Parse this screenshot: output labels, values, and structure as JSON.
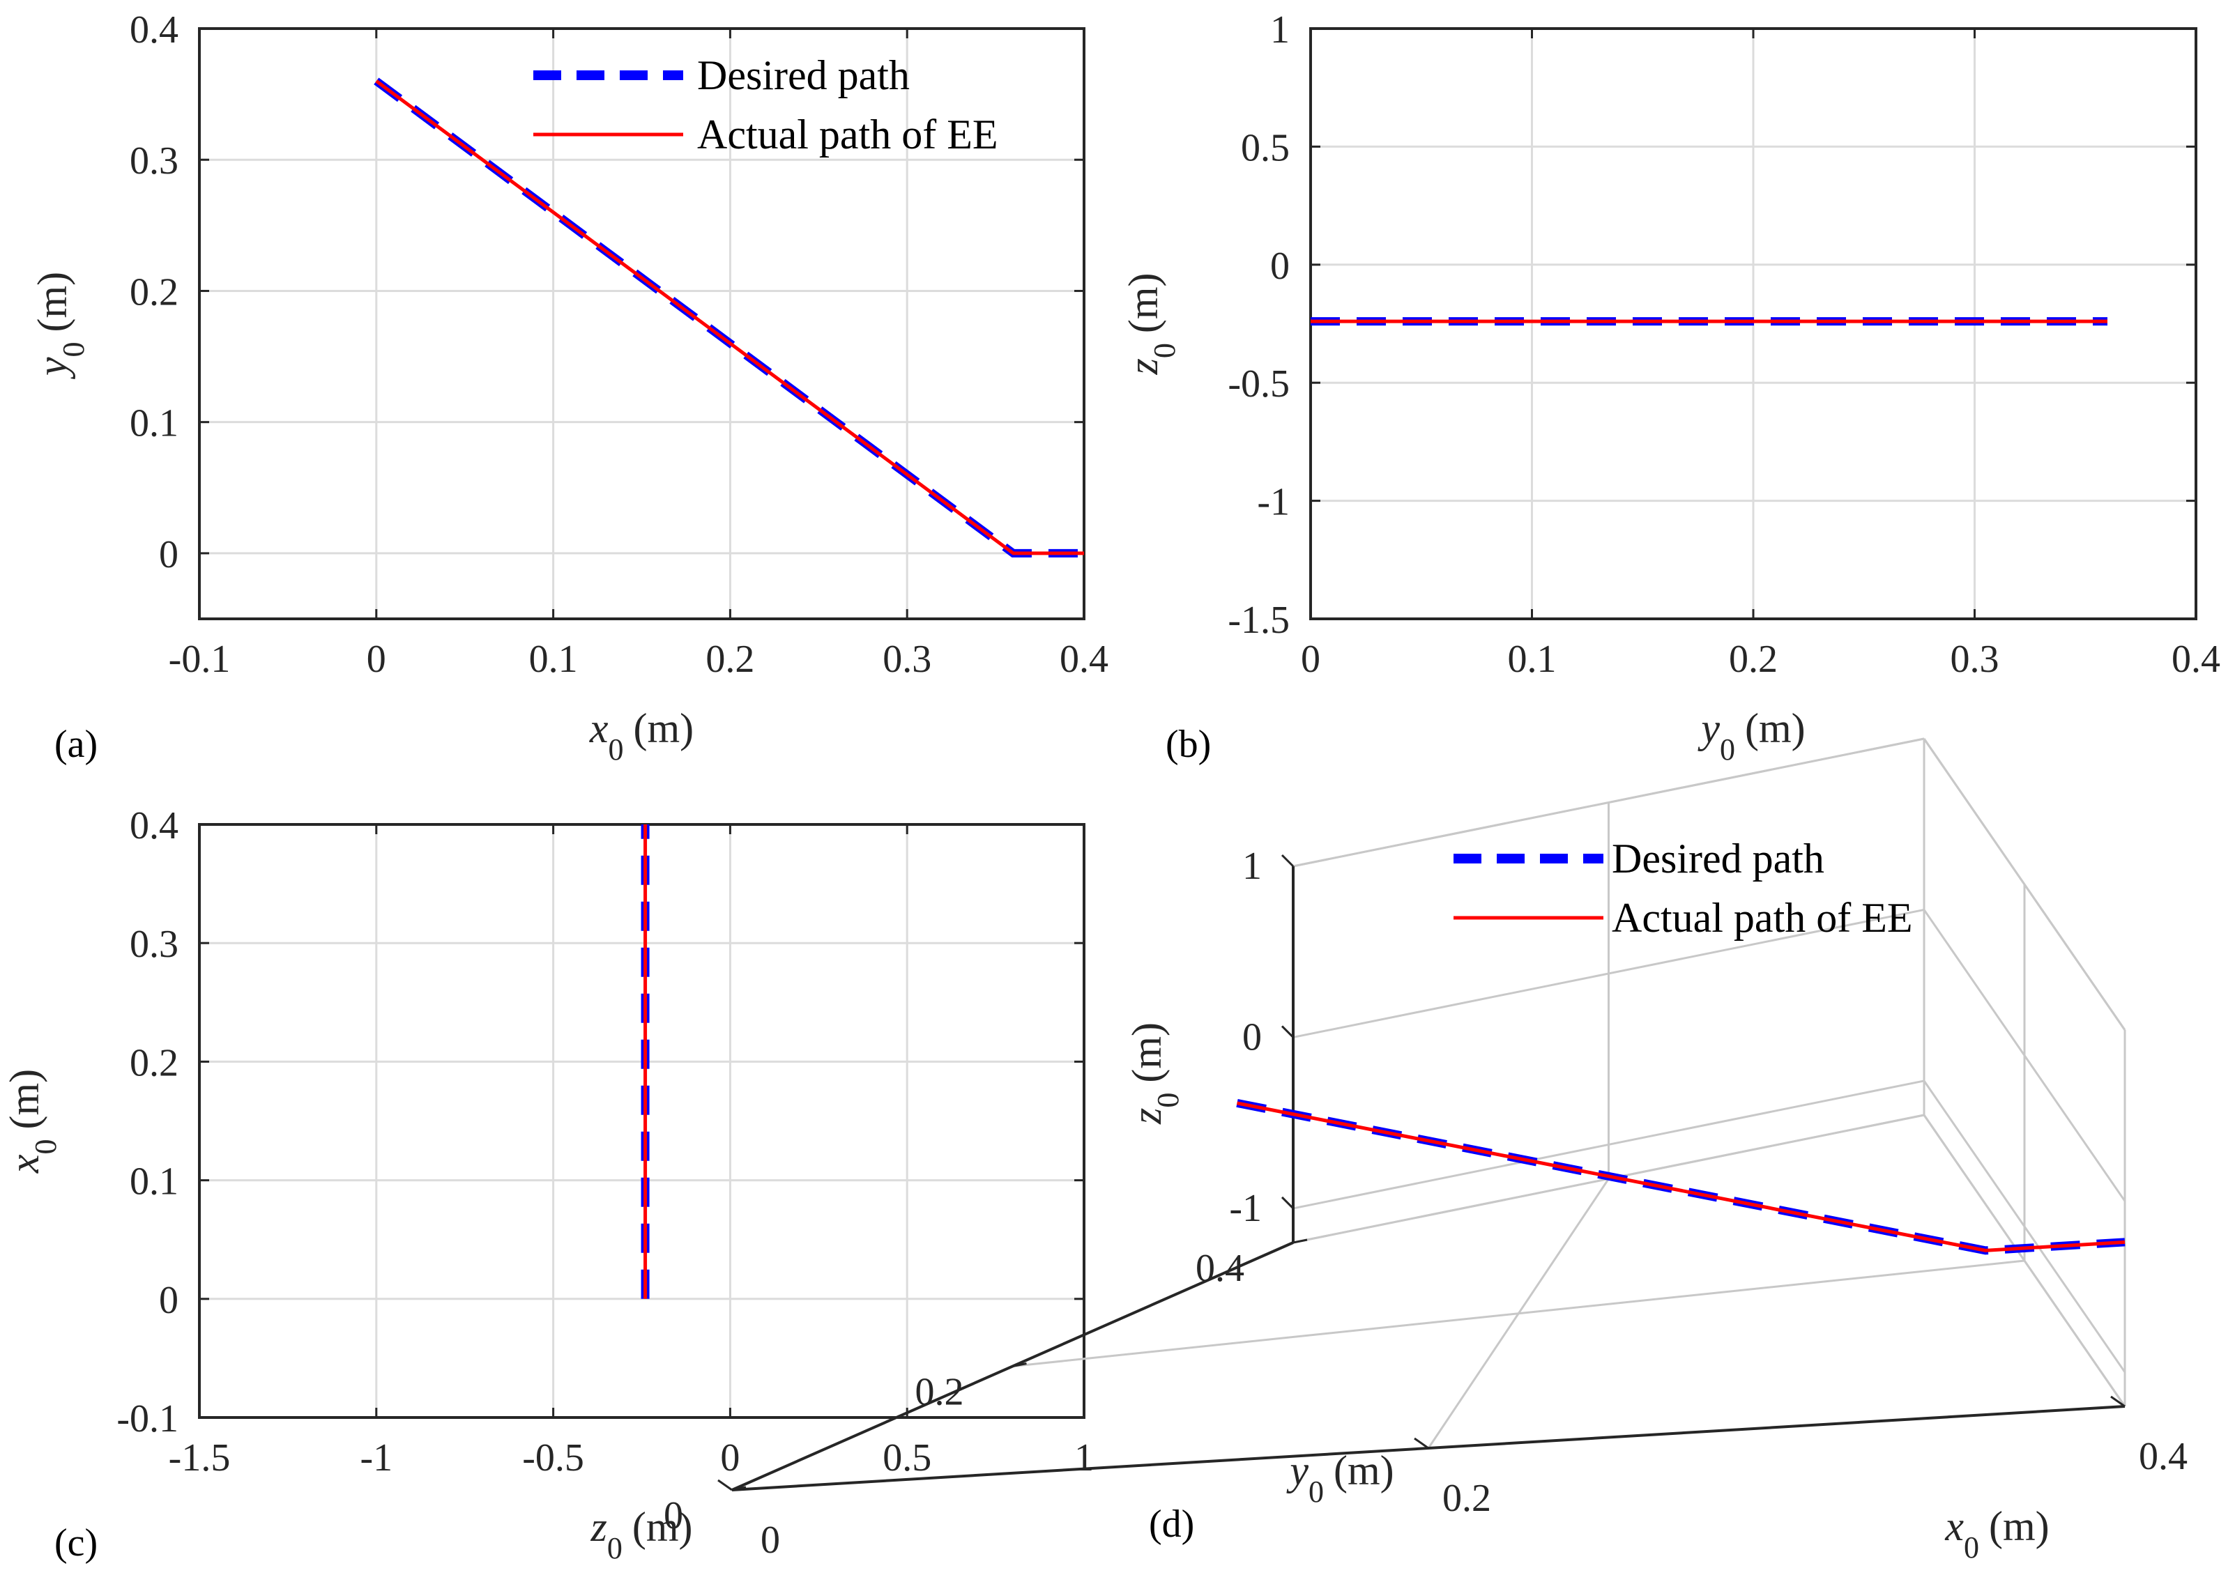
{
  "colors": {
    "desired": "#0000ff",
    "actual": "#ff0000",
    "axis": "#262626",
    "grid": "#dcdcdc"
  },
  "legend": {
    "desired_label": "Desired path",
    "actual_label": "Actual path of EE"
  },
  "chart_data": [
    {
      "id": "a",
      "type": "line",
      "panel_label": "(a)",
      "xlabel": {
        "sym": "x",
        "sub": "0",
        "unit": "(m)"
      },
      "ylabel": {
        "sym": "y",
        "sub": "0",
        "unit": "(m)"
      },
      "xlim": [
        -0.1,
        0.4
      ],
      "ylim": [
        -0.05,
        0.4
      ],
      "xticks": [
        -0.1,
        0,
        0.1,
        0.2,
        0.3,
        0.4
      ],
      "xtick_labels": [
        "-0.1",
        "0",
        "0.1",
        "0.2",
        "0.3",
        "0.4"
      ],
      "yticks": [
        0,
        0.1,
        0.2,
        0.3,
        0.4
      ],
      "ytick_labels": [
        "0",
        "0.1",
        "0.2",
        "0.3",
        "0.4"
      ],
      "legend": true,
      "series": [
        {
          "name": "Desired path",
          "x": [
            0,
            0.36,
            0.4
          ],
          "y": [
            0.36,
            0,
            0
          ]
        },
        {
          "name": "Actual path of EE",
          "x": [
            0,
            0.36,
            0.4
          ],
          "y": [
            0.36,
            0,
            0
          ]
        }
      ]
    },
    {
      "id": "b",
      "type": "line",
      "panel_label": "(b)",
      "xlabel": {
        "sym": "y",
        "sub": "0",
        "unit": "(m)"
      },
      "ylabel": {
        "sym": "z",
        "sub": "0",
        "unit": "(m)"
      },
      "xlim": [
        0,
        0.4
      ],
      "ylim": [
        -1.5,
        1
      ],
      "xticks": [
        0,
        0.1,
        0.2,
        0.3,
        0.4
      ],
      "xtick_labels": [
        "0",
        "0.1",
        "0.2",
        "0.3",
        "0.4"
      ],
      "yticks": [
        -1.5,
        -1,
        -0.5,
        0,
        0.5,
        1
      ],
      "ytick_labels": [
        "-1.5",
        "-1",
        "-0.5",
        "0",
        "0.5",
        "1"
      ],
      "legend": false,
      "series": [
        {
          "name": "Desired path",
          "x": [
            0,
            0.36
          ],
          "y": [
            -0.24,
            -0.24
          ]
        },
        {
          "name": "Actual path of EE",
          "x": [
            0,
            0.36
          ],
          "y": [
            -0.24,
            -0.24
          ]
        }
      ]
    },
    {
      "id": "c",
      "type": "line",
      "panel_label": "(c)",
      "xlabel": {
        "sym": "z",
        "sub": "0",
        "unit": "(m)"
      },
      "ylabel": {
        "sym": "x",
        "sub": "0",
        "unit": "(m)"
      },
      "xlim": [
        -1.5,
        1
      ],
      "ylim": [
        -0.1,
        0.4
      ],
      "xticks": [
        -1.5,
        -1,
        -0.5,
        0,
        0.5,
        1
      ],
      "xtick_labels": [
        "-1.5",
        "-1",
        "-0.5",
        "0",
        "0.5",
        "1"
      ],
      "yticks": [
        -0.1,
        0,
        0.1,
        0.2,
        0.3,
        0.4
      ],
      "ytick_labels": [
        "-0.1",
        "0",
        "0.1",
        "0.2",
        "0.3",
        "0.4"
      ],
      "legend": false,
      "series": [
        {
          "name": "Desired path",
          "x": [
            -0.24,
            -0.24
          ],
          "y": [
            0,
            0.4
          ]
        },
        {
          "name": "Actual path of EE",
          "x": [
            -0.24,
            -0.24
          ],
          "y": [
            0,
            0.4
          ]
        }
      ]
    },
    {
      "id": "d",
      "type": "line3d",
      "panel_label": "(d)",
      "xlabel": {
        "sym": "x",
        "sub": "0",
        "unit": "(m)"
      },
      "ylabel": {
        "sym": "y",
        "sub": "0",
        "unit": "(m)"
      },
      "zlabel": {
        "sym": "z",
        "sub": "0",
        "unit": "(m)"
      },
      "xlim": [
        0,
        0.4
      ],
      "ylim": [
        0,
        0.4
      ],
      "zlim": [
        -1.2,
        1
      ],
      "xticks": [
        0,
        0.2,
        0.4
      ],
      "xtick_labels": [
        "0",
        "0.2",
        "0.4"
      ],
      "yticks": [
        0,
        0.2,
        0.4
      ],
      "ytick_labels": [
        "0",
        "0.2",
        "0.4"
      ],
      "zticks": [
        -1,
        0,
        1
      ],
      "ztick_labels": [
        "-1",
        "0",
        "1"
      ],
      "legend": true,
      "series": [
        {
          "name": "Desired path",
          "x": [
            0,
            0.36,
            0.4
          ],
          "y": [
            0.36,
            0,
            0
          ],
          "z": [
            -0.24,
            -0.24,
            -0.24
          ]
        },
        {
          "name": "Actual path of EE",
          "x": [
            0,
            0.36,
            0.4
          ],
          "y": [
            0.36,
            0,
            0
          ],
          "z": [
            -0.24,
            -0.24,
            -0.24
          ]
        }
      ]
    }
  ]
}
